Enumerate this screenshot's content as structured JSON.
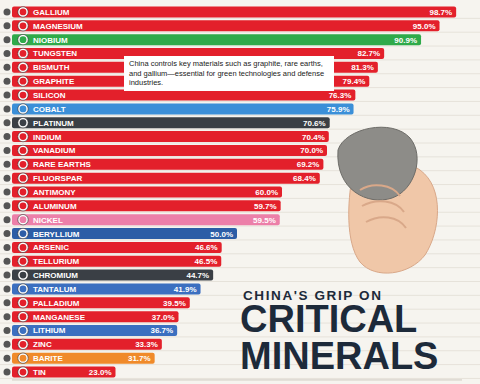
{
  "chart_data": {
    "type": "bar",
    "orientation": "horizontal",
    "title": "CRITICAL MINERALS",
    "subtitle": "CHINA'S GRIP ON",
    "annotations": [
      "China controls key materials such as graphite, rare earths, and gallium—essential for green technologies and defense industries."
    ],
    "categories": [
      "GALLIUM",
      "MAGNESIUM",
      "NIOBIUM",
      "TUNGSTEN",
      "BISMUTH",
      "GRAPHITE",
      "SILICON",
      "COBALT",
      "PLATINUM",
      "INDIUM",
      "VANADIUM",
      "RARE EARTHS",
      "FLUORSPAR",
      "ANTIMONY",
      "ALUMINUM",
      "NICKEL",
      "BERYLLIUM",
      "ARSENIC",
      "TELLURIUM",
      "CHROMIUM",
      "TANTALUM",
      "PALLADIUM",
      "MANGANESE",
      "LITHIUM",
      "ZINC",
      "BARITE",
      "TIN"
    ],
    "values": [
      98.7,
      95.0,
      90.9,
      82.7,
      81.3,
      79.4,
      76.3,
      75.9,
      70.6,
      70.4,
      70.0,
      69.2,
      68.4,
      60.0,
      59.7,
      59.5,
      50.0,
      46.6,
      46.5,
      44.7,
      41.9,
      39.5,
      37.0,
      36.7,
      33.3,
      31.7,
      23.0
    ],
    "value_labels": [
      "98.7%",
      "95.0%",
      "90.9%",
      "82.7%",
      "81.3%",
      "79.4%",
      "76.3%",
      "75.9%",
      "70.6%",
      "70.4%",
      "70.0%",
      "69.2%",
      "68.4%",
      "60.0%",
      "59.7%",
      "59.5%",
      "50.0%",
      "46.6%",
      "46.5%",
      "44.7%",
      "41.9%",
      "39.5%",
      "37.0%",
      "36.7%",
      "33.3%",
      "31.7%",
      "23.0%"
    ],
    "colors": [
      "#e3202b",
      "#e3202b",
      "#2faa4a",
      "#e3202b",
      "#e3202b",
      "#e3202b",
      "#e3202b",
      "#3b8fd8",
      "#3a3f45",
      "#e3202b",
      "#e3202b",
      "#e3202b",
      "#e3202b",
      "#e3202b",
      "#e3202b",
      "#ec7fa9",
      "#2c5da6",
      "#e3202b",
      "#e3202b",
      "#3a3f45",
      "#3b6fc0",
      "#e3202b",
      "#e3202b",
      "#3b6fc0",
      "#e3202b",
      "#f08a2a",
      "#e3202b"
    ],
    "xlim": [
      0,
      100
    ],
    "tick_labels": false,
    "grid": false,
    "data_labels": true
  }
}
